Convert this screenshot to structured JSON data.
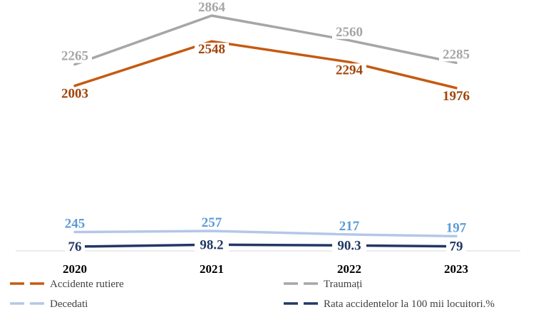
{
  "chart_data": {
    "type": "line",
    "categories": [
      "2020",
      "2021",
      "2022",
      "2023"
    ],
    "series": [
      {
        "name": "Accidente rutiere",
        "values": [
          2003,
          2548,
          2294,
          1976
        ],
        "color": "#C55A11",
        "label_color": "#A0440A",
        "group": "top",
        "label_pos": "below"
      },
      {
        "name": "Traumați",
        "values": [
          2265,
          2864,
          2560,
          2285
        ],
        "color": "#A6A6A6",
        "label_color": "#A6A6A6",
        "group": "top",
        "label_pos": "above"
      },
      {
        "name": "Decedati",
        "values": [
          245,
          257,
          217,
          197
        ],
        "color": "#B4C7E7",
        "label_color": "#5B9BD5",
        "group": "bottom",
        "label_pos": "above"
      },
      {
        "name": "Rata accidentelor la 100 mii locuitori.%",
        "values": [
          76,
          98.2,
          90.3,
          79
        ],
        "color": "#203864",
        "label_color": "#203864",
        "group": "bottom",
        "label_pos": "center"
      }
    ],
    "data_labels": [
      [
        "2003",
        "2548",
        "2294",
        "1976"
      ],
      [
        "2265",
        "2864",
        "2560",
        "2285"
      ],
      [
        "245",
        "257",
        "217",
        "197"
      ],
      [
        "76",
        "98.2",
        "90.3",
        "79"
      ]
    ],
    "legend_position": "bottom",
    "grid": false
  }
}
